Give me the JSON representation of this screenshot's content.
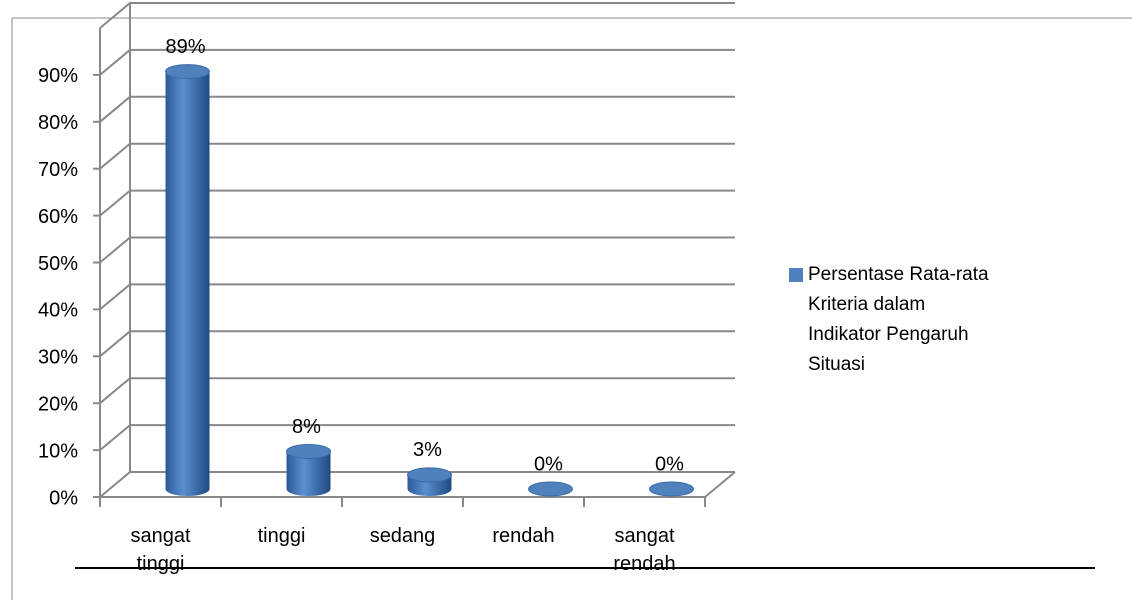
{
  "chart_data": {
    "type": "bar3d",
    "categories": [
      "sangat tinggi",
      "tinggi",
      "sedang",
      "rendah",
      "sangat rendah"
    ],
    "series": [
      {
        "name": "Persentase Rata-rata Kriteria dalam Indikator Pengaruh Situasi",
        "color": "#4f81bd",
        "values": [
          89,
          8,
          3,
          0,
          0
        ],
        "value_labels": [
          "89%",
          "8%",
          "3%",
          "0%",
          "0%"
        ]
      }
    ],
    "ylim": [
      0,
      100
    ],
    "yticks": [
      {
        "value": 0,
        "label": "0%"
      },
      {
        "value": 10,
        "label": "10%"
      },
      {
        "value": 20,
        "label": "20%"
      },
      {
        "value": 30,
        "label": "30%"
      },
      {
        "value": 40,
        "label": "40%"
      },
      {
        "value": 50,
        "label": "50%"
      },
      {
        "value": 60,
        "label": "60%"
      },
      {
        "value": 70,
        "label": "70%"
      },
      {
        "value": 80,
        "label": "80%"
      },
      {
        "value": 90,
        "label": "90%"
      }
    ],
    "grid": true,
    "legend": "right"
  }
}
